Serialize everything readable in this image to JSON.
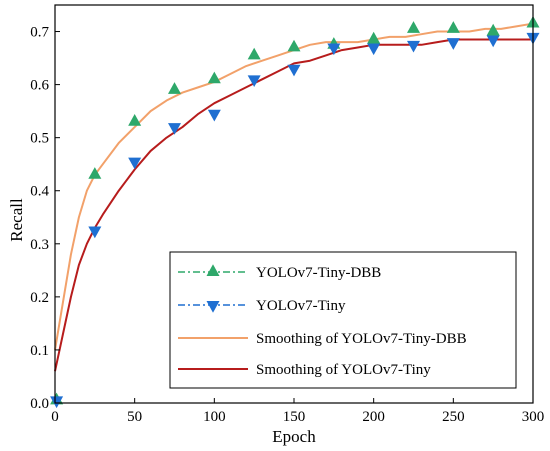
{
  "chart_data": {
    "type": "line",
    "xlabel": "Epoch",
    "ylabel": "Recall",
    "xlim": [
      0,
      300
    ],
    "ylim": [
      0.0,
      0.75
    ],
    "x_ticks": [
      0,
      50,
      100,
      150,
      200,
      250,
      300
    ],
    "y_ticks": [
      0.0,
      0.1,
      0.2,
      0.3,
      0.4,
      0.5,
      0.6,
      0.7
    ],
    "x_tick_labels": [
      "0",
      "50",
      "100",
      "150",
      "200",
      "250",
      "300"
    ],
    "y_tick_labels": [
      "0.0",
      "0.1",
      "0.2",
      "0.3",
      "0.4",
      "0.5",
      "0.6",
      "0.7"
    ],
    "grid": false,
    "legend_position": "bottom-right",
    "series": [
      {
        "name": "YOLOv7-Tiny-DBB",
        "style": "marker-triangle-up",
        "color": "#2ea86a",
        "x": [
          1,
          25,
          50,
          75,
          100,
          125,
          150,
          175,
          200,
          225,
          250,
          275,
          300
        ],
        "values": [
          0.005,
          0.43,
          0.53,
          0.59,
          0.61,
          0.655,
          0.67,
          0.675,
          0.685,
          0.705,
          0.705,
          0.7,
          0.715
        ]
      },
      {
        "name": "YOLOv7-Tiny",
        "style": "marker-triangle-down",
        "color": "#1f6fd1",
        "x": [
          1,
          25,
          50,
          75,
          100,
          125,
          150,
          175,
          200,
          225,
          250,
          275,
          300
        ],
        "values": [
          0.005,
          0.325,
          0.455,
          0.52,
          0.545,
          0.61,
          0.63,
          0.67,
          0.67,
          0.675,
          0.68,
          0.685,
          0.69
        ]
      },
      {
        "name": "Smoothing of YOLOv7-Tiny-DBB",
        "style": "line",
        "color": "#f2a16a",
        "x": [
          0,
          5,
          10,
          15,
          20,
          25,
          30,
          40,
          50,
          60,
          70,
          80,
          90,
          100,
          110,
          120,
          130,
          140,
          150,
          160,
          170,
          180,
          190,
          200,
          210,
          220,
          230,
          240,
          250,
          260,
          270,
          280,
          290,
          300
        ],
        "values": [
          0.1,
          0.19,
          0.28,
          0.35,
          0.4,
          0.43,
          0.45,
          0.49,
          0.52,
          0.55,
          0.57,
          0.585,
          0.595,
          0.605,
          0.62,
          0.635,
          0.645,
          0.655,
          0.665,
          0.675,
          0.68,
          0.68,
          0.68,
          0.685,
          0.69,
          0.69,
          0.695,
          0.7,
          0.7,
          0.7,
          0.705,
          0.705,
          0.71,
          0.715
        ]
      },
      {
        "name": "Smoothing of YOLOv7-Tiny",
        "style": "line",
        "color": "#b71c1c",
        "x": [
          0,
          5,
          10,
          15,
          20,
          25,
          30,
          40,
          50,
          60,
          70,
          80,
          90,
          100,
          110,
          120,
          130,
          140,
          150,
          160,
          170,
          180,
          190,
          200,
          210,
          220,
          230,
          240,
          250,
          260,
          270,
          280,
          290,
          300
        ],
        "values": [
          0.06,
          0.13,
          0.2,
          0.26,
          0.3,
          0.33,
          0.355,
          0.4,
          0.44,
          0.475,
          0.5,
          0.52,
          0.545,
          0.565,
          0.58,
          0.595,
          0.61,
          0.625,
          0.64,
          0.645,
          0.655,
          0.665,
          0.67,
          0.675,
          0.675,
          0.675,
          0.675,
          0.68,
          0.685,
          0.685,
          0.685,
          0.685,
          0.685,
          0.685
        ]
      }
    ]
  }
}
